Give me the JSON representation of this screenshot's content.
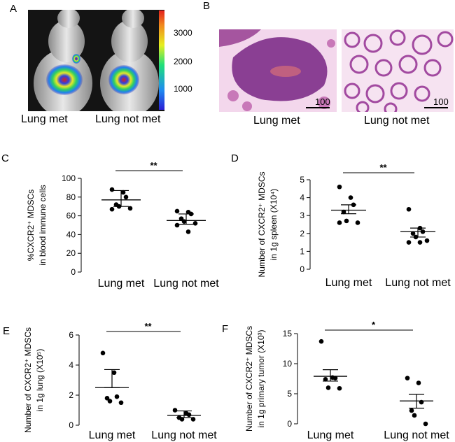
{
  "panels": {
    "A": {
      "letter": "A",
      "labels": [
        "Lung met",
        "Lung not met"
      ],
      "colorbar_ticks": [
        "3000",
        "2000",
        "1000"
      ]
    },
    "B": {
      "letter": "B",
      "labels": [
        "Lung met",
        "Lung not met"
      ],
      "scale_bar": "100"
    }
  },
  "chart_data": [
    {
      "type": "scatter",
      "panel": "C",
      "categories": [
        "Lung met",
        "Lung not met"
      ],
      "ylabel_line1": "%CXCR2⁺ MDSCs",
      "ylabel_line2": "in blood immune cells",
      "ylim": [
        0,
        100
      ],
      "yticks": [
        0,
        20,
        40,
        60,
        80,
        100
      ],
      "significance": "**",
      "series": [
        {
          "points": [
            88,
            85,
            80,
            72,
            70,
            68,
            67
          ],
          "mean": 77,
          "sem_upper": 87,
          "sem_lower": 70
        },
        {
          "points": [
            65,
            64,
            62,
            57,
            54,
            52,
            50,
            43
          ],
          "mean": 55,
          "sem_upper": 62,
          "sem_lower": 51
        }
      ]
    },
    {
      "type": "scatter",
      "panel": "D",
      "categories": [
        "Lung met",
        "Lung not met"
      ],
      "ylabel_line1": "Number of CXCR2⁺ MDSCs",
      "ylabel_line2": "in 1g spleen (X10⁴)",
      "ylim": [
        0,
        5
      ],
      "yticks": [
        0,
        1,
        2,
        3,
        4,
        5
      ],
      "significance": "**",
      "series": [
        {
          "points": [
            4.6,
            4.0,
            3.6,
            3.2,
            2.7,
            2.6,
            2.6
          ],
          "mean": 3.3,
          "sem_upper": 3.6,
          "sem_lower": 3.1
        },
        {
          "points": [
            3.35,
            2.3,
            2.1,
            2.0,
            1.8,
            1.6,
            1.5,
            1.5
          ],
          "mean": 2.1,
          "sem_upper": 2.3,
          "sem_lower": 1.8
        }
      ]
    },
    {
      "type": "scatter",
      "panel": "E",
      "categories": [
        "Lung met",
        "Lung not met"
      ],
      "ylabel_line1": "Number of CXCR2⁺ MDSCs",
      "ylabel_line2": "in 1g lung (X10⁵)",
      "ylim": [
        0,
        6
      ],
      "yticks": [
        0,
        2,
        4,
        6
      ],
      "significance": "**",
      "series": [
        {
          "points": [
            4.8,
            3.5,
            1.9,
            1.8,
            1.6,
            1.5
          ],
          "mean": 2.5,
          "sem_upper": 3.7,
          "sem_lower": 2.5
        },
        {
          "points": [
            1.0,
            0.8,
            0.7,
            0.5,
            0.4,
            0.4
          ],
          "mean": 0.65,
          "sem_upper": 0.95,
          "sem_lower": 0.5
        }
      ]
    },
    {
      "type": "scatter",
      "panel": "F",
      "categories": [
        "Lung met",
        "Lung not met"
      ],
      "ylabel_line1": "Number of CXCR2⁺ MDSCs",
      "ylabel_line2": "in 1g primary tumor (X10³)",
      "ylim": [
        0,
        15
      ],
      "yticks": [
        0,
        5,
        10,
        15
      ],
      "significance": "*",
      "series": [
        {
          "points": [
            13.7,
            7.7,
            7.6,
            7.4,
            6.0,
            5.9
          ],
          "mean": 7.9,
          "sem_upper": 9.0,
          "sem_lower": 7.1
        },
        {
          "points": [
            7.6,
            6.8,
            3.6,
            2.2,
            1.4,
            0.0
          ],
          "mean": 3.8,
          "sem_upper": 4.9,
          "sem_lower": 2.6
        }
      ]
    }
  ]
}
